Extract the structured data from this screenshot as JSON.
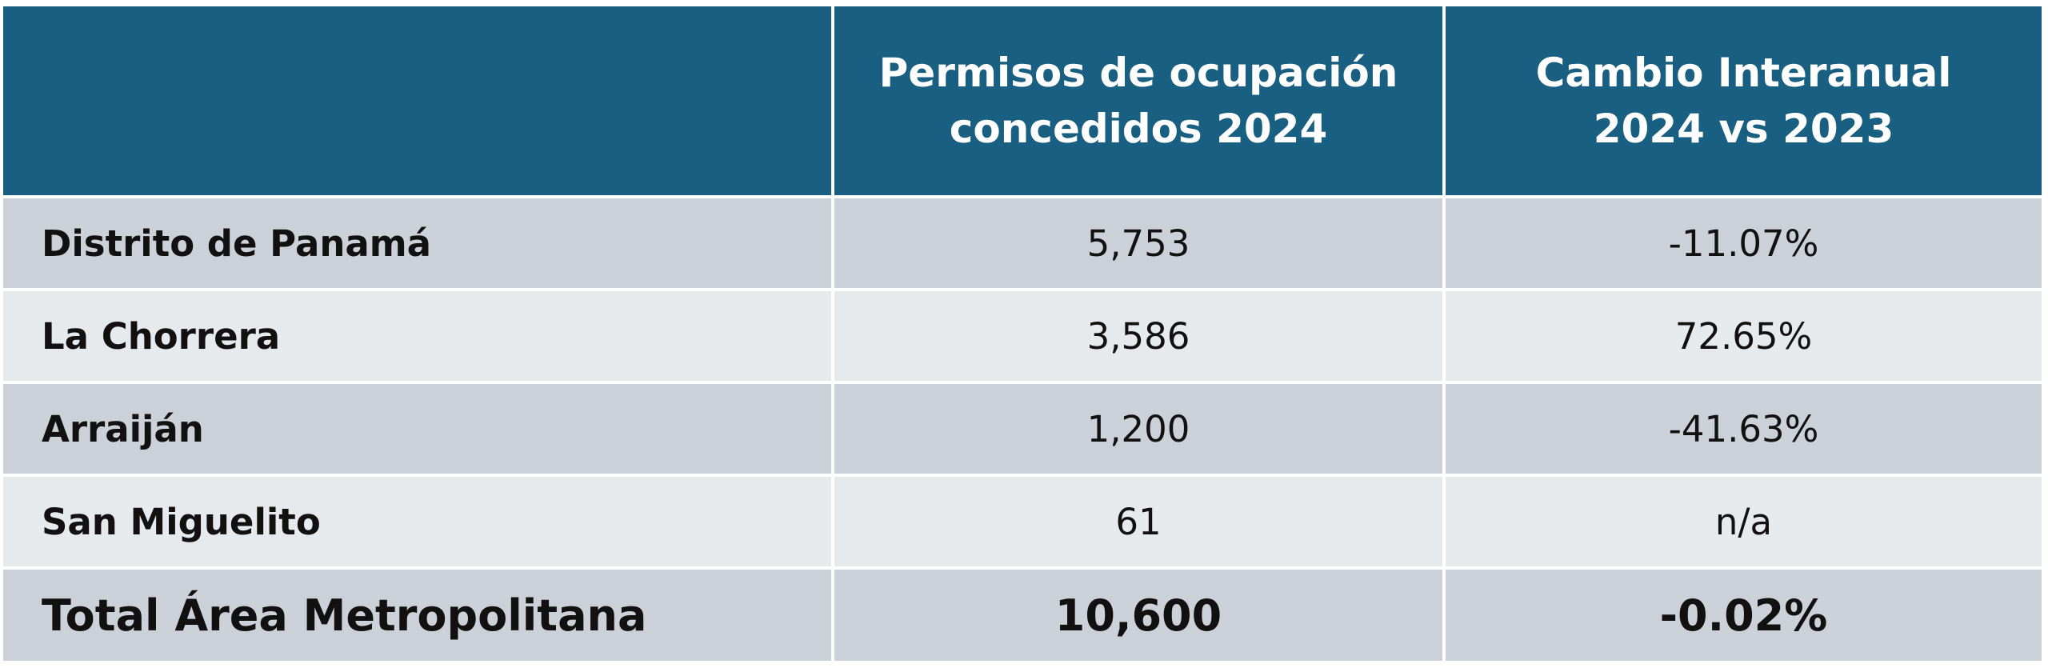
{
  "table": {
    "header": [
      "Permisos de ocupación concedidos 2024",
      "Cambio Interanual 2024 vs 2023"
    ],
    "rows": [
      [
        "Distrito de Panamá",
        "5,753",
        "-11.07%"
      ],
      [
        "La Chorrera",
        "3,586",
        "72.65%"
      ],
      [
        "Arraiján",
        "1,200",
        "-41.63%"
      ],
      [
        "San Miguelito",
        "61",
        "n/a"
      ]
    ],
    "total": [
      "Total Área Metropolitana",
      "10,600",
      "-0.02%"
    ]
  }
}
